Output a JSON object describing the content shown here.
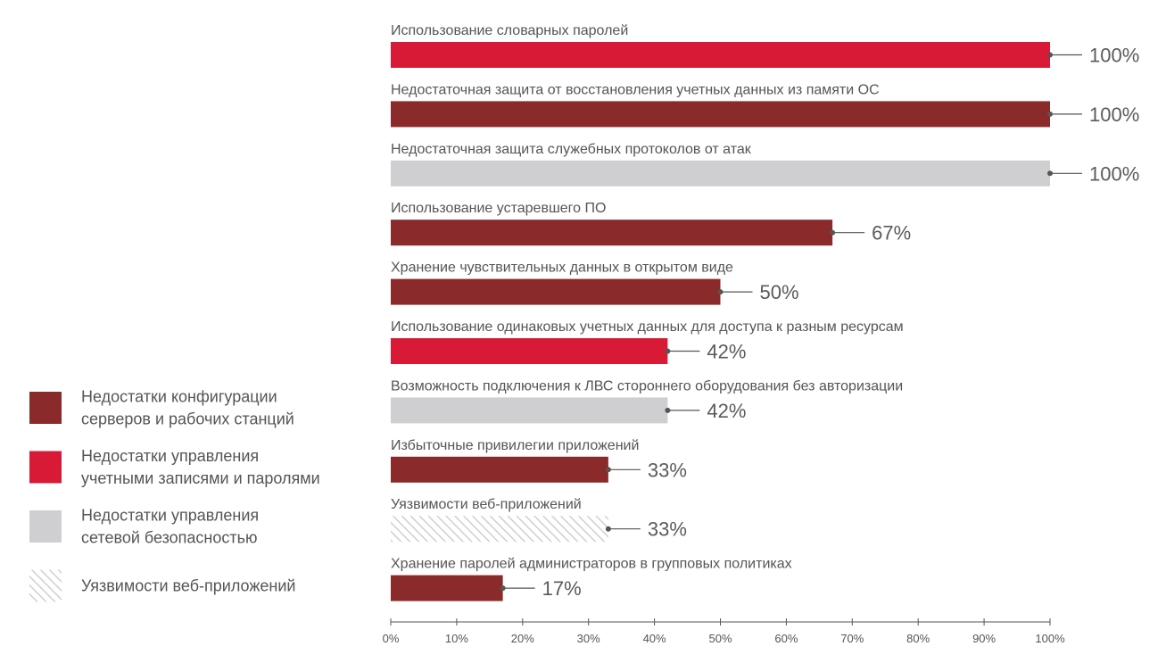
{
  "chart_data": {
    "type": "bar",
    "orientation": "horizontal",
    "title": "",
    "xlabel": "",
    "ylabel": "",
    "xlim": [
      0,
      100
    ],
    "x_ticks": [
      0,
      10,
      20,
      30,
      40,
      50,
      60,
      70,
      80,
      90,
      100
    ],
    "tick_suffix": "%",
    "grid": false,
    "legend_position": "left",
    "categories": [
      "Использование словарных паролей",
      "Недостаточная защита от восстановления учетных данных из памяти ОС",
      "Недостаточная защита служебных протоколов от атак",
      "Использование устаревшего ПО",
      "Хранение чувствительных данных в открытом виде",
      "Использование одинаковых учетных данных для доступа к разным ресурсам",
      "Возможность подключения к ЛВС стороннего оборудования без авторизации",
      "Избыточные привилегии приложений",
      "Уязвимости веб-приложений",
      "Хранение паролей администраторов в групповых политиках"
    ],
    "values": [
      100,
      100,
      100,
      67,
      50,
      42,
      42,
      33,
      33,
      17
    ],
    "value_labels": [
      "100%",
      "100%",
      "100%",
      "67%",
      "50%",
      "42%",
      "42%",
      "33%",
      "33%",
      "17%"
    ],
    "groups": [
      "accounts",
      "config",
      "network",
      "config",
      "config",
      "accounts",
      "network",
      "config",
      "web",
      "config"
    ],
    "legend": [
      {
        "key": "config",
        "lines": [
          "Недостатки конфигурации",
          "серверов и рабочих станций"
        ],
        "color": "#8b2a2a",
        "pattern": "solid"
      },
      {
        "key": "accounts",
        "lines": [
          "Недостатки управления",
          "учетными записями и паролями"
        ],
        "color": "#d81a36",
        "pattern": "solid"
      },
      {
        "key": "network",
        "lines": [
          "Недостатки управления",
          "сетевой безопасностью"
        ],
        "color": "#cfcfd1",
        "pattern": "solid"
      },
      {
        "key": "web",
        "lines": [
          "Уязвимости веб-приложений"
        ],
        "color": "#cfcfd1",
        "pattern": "hatch"
      }
    ]
  },
  "colors": {
    "text": "#555555",
    "value_text": "#5a5a5a",
    "leader_line": "#555555",
    "axis": "#555555"
  }
}
